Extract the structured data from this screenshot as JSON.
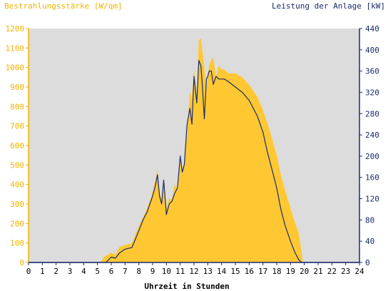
{
  "chart_data": {
    "type": "area",
    "title_left": "Bestrahlungsstärke [W/qm]",
    "title_right": "Leistung der Anlage [kW]",
    "xlabel": "Uhrzeit in Stunden",
    "xlim": [
      0,
      24
    ],
    "x_ticks": [
      "0",
      "1",
      "2",
      "3",
      "4",
      "5",
      "6",
      "7",
      "8",
      "9",
      "10",
      "11",
      "12",
      "13",
      "14",
      "15",
      "16",
      "17",
      "18",
      "19",
      "20",
      "21",
      "22",
      "23",
      "24"
    ],
    "ylim_left": [
      0,
      1200
    ],
    "y_ticks_left": [
      "0",
      "100",
      "200",
      "300",
      "400",
      "500",
      "600",
      "700",
      "800",
      "900",
      "1000",
      "1100",
      "1200"
    ],
    "ylim_right": [
      0,
      440
    ],
    "y_ticks_right": [
      "0",
      "40",
      "80",
      "120",
      "160",
      "200",
      "240",
      "280",
      "320",
      "360",
      "400",
      "440"
    ],
    "grid": false,
    "colors": {
      "plot_background": "#dcdcdc",
      "irradiance_fill": "#ffc832",
      "power_line": "#1a2a6c",
      "left_axis": "#f0b400",
      "right_axis": "#1a2a6c"
    },
    "series": [
      {
        "axis": "left",
        "style": "area",
        "x": [
          0,
          5.2,
          5.5,
          6.0,
          6.3,
          6.6,
          7.0,
          7.5,
          8.0,
          8.3,
          8.6,
          9.0,
          9.2,
          9.35,
          9.5,
          9.65,
          9.8,
          10.0,
          10.2,
          10.4,
          10.6,
          10.8,
          11.0,
          11.15,
          11.3,
          11.5,
          11.7,
          11.85,
          12.0,
          12.2,
          12.35,
          12.5,
          12.6,
          12.75,
          12.9,
          13.0,
          13.1,
          13.25,
          13.4,
          13.6,
          13.8,
          14.0,
          14.2,
          14.5,
          15.0,
          15.5,
          16.0,
          16.3,
          16.6,
          17.0,
          17.3,
          17.6,
          18.0,
          18.3,
          18.6,
          19.0,
          19.3,
          19.6,
          19.8,
          19.9,
          20.0,
          24
        ],
        "values": [
          0,
          0,
          30,
          50,
          40,
          80,
          90,
          100,
          190,
          230,
          280,
          360,
          420,
          480,
          350,
          320,
          430,
          280,
          330,
          320,
          400,
          380,
          560,
          450,
          520,
          650,
          880,
          840,
          990,
          850,
          1140,
          1150,
          1090,
          1000,
          880,
          960,
          1010,
          1040,
          1050,
          950,
          1010,
          990,
          990,
          970,
          970,
          950,
          910,
          880,
          850,
          780,
          720,
          650,
          550,
          450,
          370,
          280,
          210,
          150,
          50,
          0,
          0,
          0
        ]
      },
      {
        "axis": "right",
        "style": "line",
        "x": [
          0,
          5.6,
          6.0,
          6.3,
          6.6,
          7.0,
          7.5,
          8.0,
          8.3,
          8.6,
          9.0,
          9.2,
          9.35,
          9.5,
          9.65,
          9.8,
          10.0,
          10.2,
          10.4,
          10.6,
          10.8,
          11.0,
          11.15,
          11.3,
          11.5,
          11.7,
          11.85,
          12.0,
          12.2,
          12.35,
          12.5,
          12.6,
          12.75,
          12.9,
          13.0,
          13.1,
          13.25,
          13.4,
          13.6,
          13.8,
          14.0,
          14.2,
          14.5,
          15.0,
          15.5,
          16.0,
          16.3,
          16.6,
          17.0,
          17.3,
          17.6,
          18.0,
          18.3,
          18.6,
          19.0,
          19.3,
          19.6,
          19.8,
          20.0,
          24
        ],
        "values": [
          0,
          0,
          10,
          8,
          18,
          25,
          28,
          60,
          80,
          95,
          125,
          145,
          165,
          125,
          110,
          155,
          90,
          110,
          115,
          130,
          140,
          200,
          170,
          185,
          260,
          290,
          260,
          350,
          300,
          380,
          370,
          335,
          270,
          345,
          350,
          360,
          360,
          335,
          350,
          345,
          345,
          345,
          340,
          330,
          320,
          305,
          290,
          275,
          245,
          210,
          180,
          140,
          100,
          70,
          40,
          20,
          5,
          0,
          0,
          0
        ]
      }
    ]
  }
}
